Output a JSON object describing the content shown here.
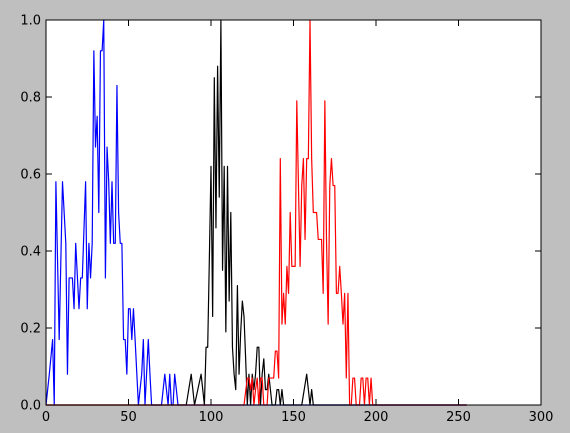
{
  "chart_data": {
    "type": "line",
    "title": "",
    "xlabel": "",
    "ylabel": "",
    "xlim": [
      0,
      300
    ],
    "ylim": [
      0,
      1.0
    ],
    "xticks": [
      "0",
      "50",
      "100",
      "150",
      "200",
      "250",
      "300"
    ],
    "yticks": [
      "0.0",
      "0.2",
      "0.4",
      "0.6",
      "0.8",
      "1.0"
    ],
    "grid": false,
    "legend": "none",
    "series": [
      {
        "color": "#0000ff",
        "x": [
          0,
          2,
          4,
          5,
          6,
          8,
          10,
          12,
          13,
          14,
          16,
          17,
          18,
          20,
          21,
          22,
          24,
          25,
          26,
          27,
          28,
          29,
          30,
          31,
          32,
          33,
          34,
          35,
          36,
          37,
          38,
          39,
          40,
          41,
          42,
          43,
          44,
          45,
          46,
          47,
          48,
          49,
          50,
          51,
          52,
          53,
          54,
          56,
          58,
          59,
          60,
          62,
          63,
          64,
          65,
          66,
          67,
          68,
          70,
          72,
          74,
          75,
          76,
          77,
          78,
          80,
          81,
          82,
          83,
          84,
          90,
          100,
          110,
          120,
          130,
          140,
          150,
          160,
          170,
          180,
          190,
          200,
          210,
          220,
          230,
          240,
          250,
          255
        ],
        "y": [
          0,
          0.08,
          0.17,
          0,
          0.58,
          0.17,
          0.58,
          0.42,
          0.08,
          0.33,
          0.33,
          0.25,
          0.42,
          0.25,
          0.33,
          0.33,
          0.58,
          0.25,
          0.42,
          0.33,
          0.42,
          0.92,
          0.67,
          0.75,
          0.5,
          0.92,
          0.92,
          1.0,
          0.33,
          0.67,
          0.58,
          0.42,
          0.58,
          0.42,
          0.42,
          0.83,
          0.5,
          0.42,
          0.42,
          0.17,
          0.17,
          0.08,
          0.25,
          0.25,
          0.17,
          0.25,
          0.17,
          0,
          0.08,
          0.17,
          0,
          0.17,
          0.08,
          0,
          0,
          0,
          0,
          0,
          0,
          0.08,
          0,
          0.08,
          0,
          0,
          0.08,
          0,
          0,
          0,
          0,
          0,
          0,
          0,
          0,
          0,
          0,
          0,
          0,
          0,
          0,
          0,
          0,
          0,
          0,
          0,
          0,
          0,
          0,
          0
        ]
      },
      {
        "color": "#000000",
        "x": [
          0,
          50,
          85,
          88,
          90,
          92,
          94,
          95,
          96,
          97,
          98,
          99,
          100,
          101,
          102,
          103,
          104,
          105,
          106,
          107,
          108,
          109,
          110,
          111,
          112,
          113,
          114,
          115,
          116,
          117,
          118,
          119,
          120,
          121,
          122,
          123,
          124,
          125,
          126,
          127,
          128,
          129,
          130,
          131,
          132,
          133,
          134,
          135,
          136,
          137,
          138,
          139,
          140,
          141,
          142,
          143,
          144,
          145,
          146,
          147,
          148,
          150,
          155,
          158,
          159,
          160,
          161,
          162,
          165,
          200,
          250,
          255
        ],
        "y": [
          0,
          0,
          0,
          0.08,
          0,
          0.04,
          0.08,
          0.04,
          0,
          0.15,
          0.15,
          0.38,
          0.62,
          0.23,
          0.85,
          0.46,
          0.88,
          0.54,
          1.0,
          0.35,
          0.62,
          0.19,
          0.62,
          0.27,
          0.5,
          0.15,
          0.08,
          0.04,
          0.31,
          0.08,
          0.19,
          0.27,
          0.23,
          0.12,
          0,
          0.08,
          0,
          0.08,
          0.04,
          0.08,
          0.15,
          0.15,
          0,
          0.08,
          0.12,
          0.04,
          0.04,
          0.08,
          0.04,
          0,
          0,
          0,
          0.04,
          0.04,
          0,
          0.04,
          0,
          0,
          0,
          0,
          0,
          0,
          0,
          0.08,
          0.04,
          0,
          0.04,
          0,
          0,
          0,
          0,
          0
        ]
      },
      {
        "color": "#ff0000",
        "x": [
          0,
          100,
          120,
          122,
          123,
          124,
          125,
          126,
          127,
          128,
          129,
          130,
          131,
          132,
          133,
          134,
          135,
          136,
          137,
          138,
          139,
          140,
          141,
          142,
          143,
          144,
          145,
          146,
          147,
          148,
          149,
          150,
          151,
          152,
          153,
          154,
          155,
          156,
          157,
          158,
          159,
          160,
          161,
          162,
          163,
          164,
          165,
          166,
          167,
          168,
          169,
          170,
          171,
          172,
          173,
          174,
          175,
          176,
          177,
          178,
          179,
          180,
          181,
          182,
          183,
          184,
          185,
          186,
          187,
          188,
          189,
          190,
          191,
          192,
          193,
          194,
          195,
          196,
          197,
          198,
          199,
          200,
          201,
          202,
          203,
          204,
          205,
          210,
          250,
          255
        ],
        "y": [
          0,
          0,
          0,
          0.07,
          0.07,
          0.04,
          0.07,
          0,
          0.04,
          0.07,
          0,
          0.07,
          0.07,
          0,
          0,
          0,
          0.07,
          0.07,
          0.07,
          0.07,
          0.14,
          0.14,
          0.07,
          0.64,
          0.21,
          0.29,
          0.21,
          0.36,
          0.29,
          0.5,
          0.36,
          0.36,
          0.36,
          0.79,
          0.57,
          0.36,
          0.57,
          0.64,
          0.43,
          0.64,
          0.64,
          1.0,
          0.64,
          0.5,
          0.5,
          0.5,
          0.43,
          0.43,
          0.43,
          0.29,
          0.79,
          0.43,
          0.21,
          0.57,
          0.64,
          0.57,
          0.57,
          0.29,
          0.29,
          0.36,
          0.29,
          0.21,
          0.29,
          0.07,
          0.29,
          0,
          0,
          0.07,
          0.07,
          0,
          0,
          0,
          0.07,
          0.07,
          0,
          0.07,
          0.07,
          0,
          0.07,
          0,
          0,
          0,
          0,
          0,
          0,
          0,
          0,
          0,
          0,
          0
        ]
      }
    ]
  }
}
